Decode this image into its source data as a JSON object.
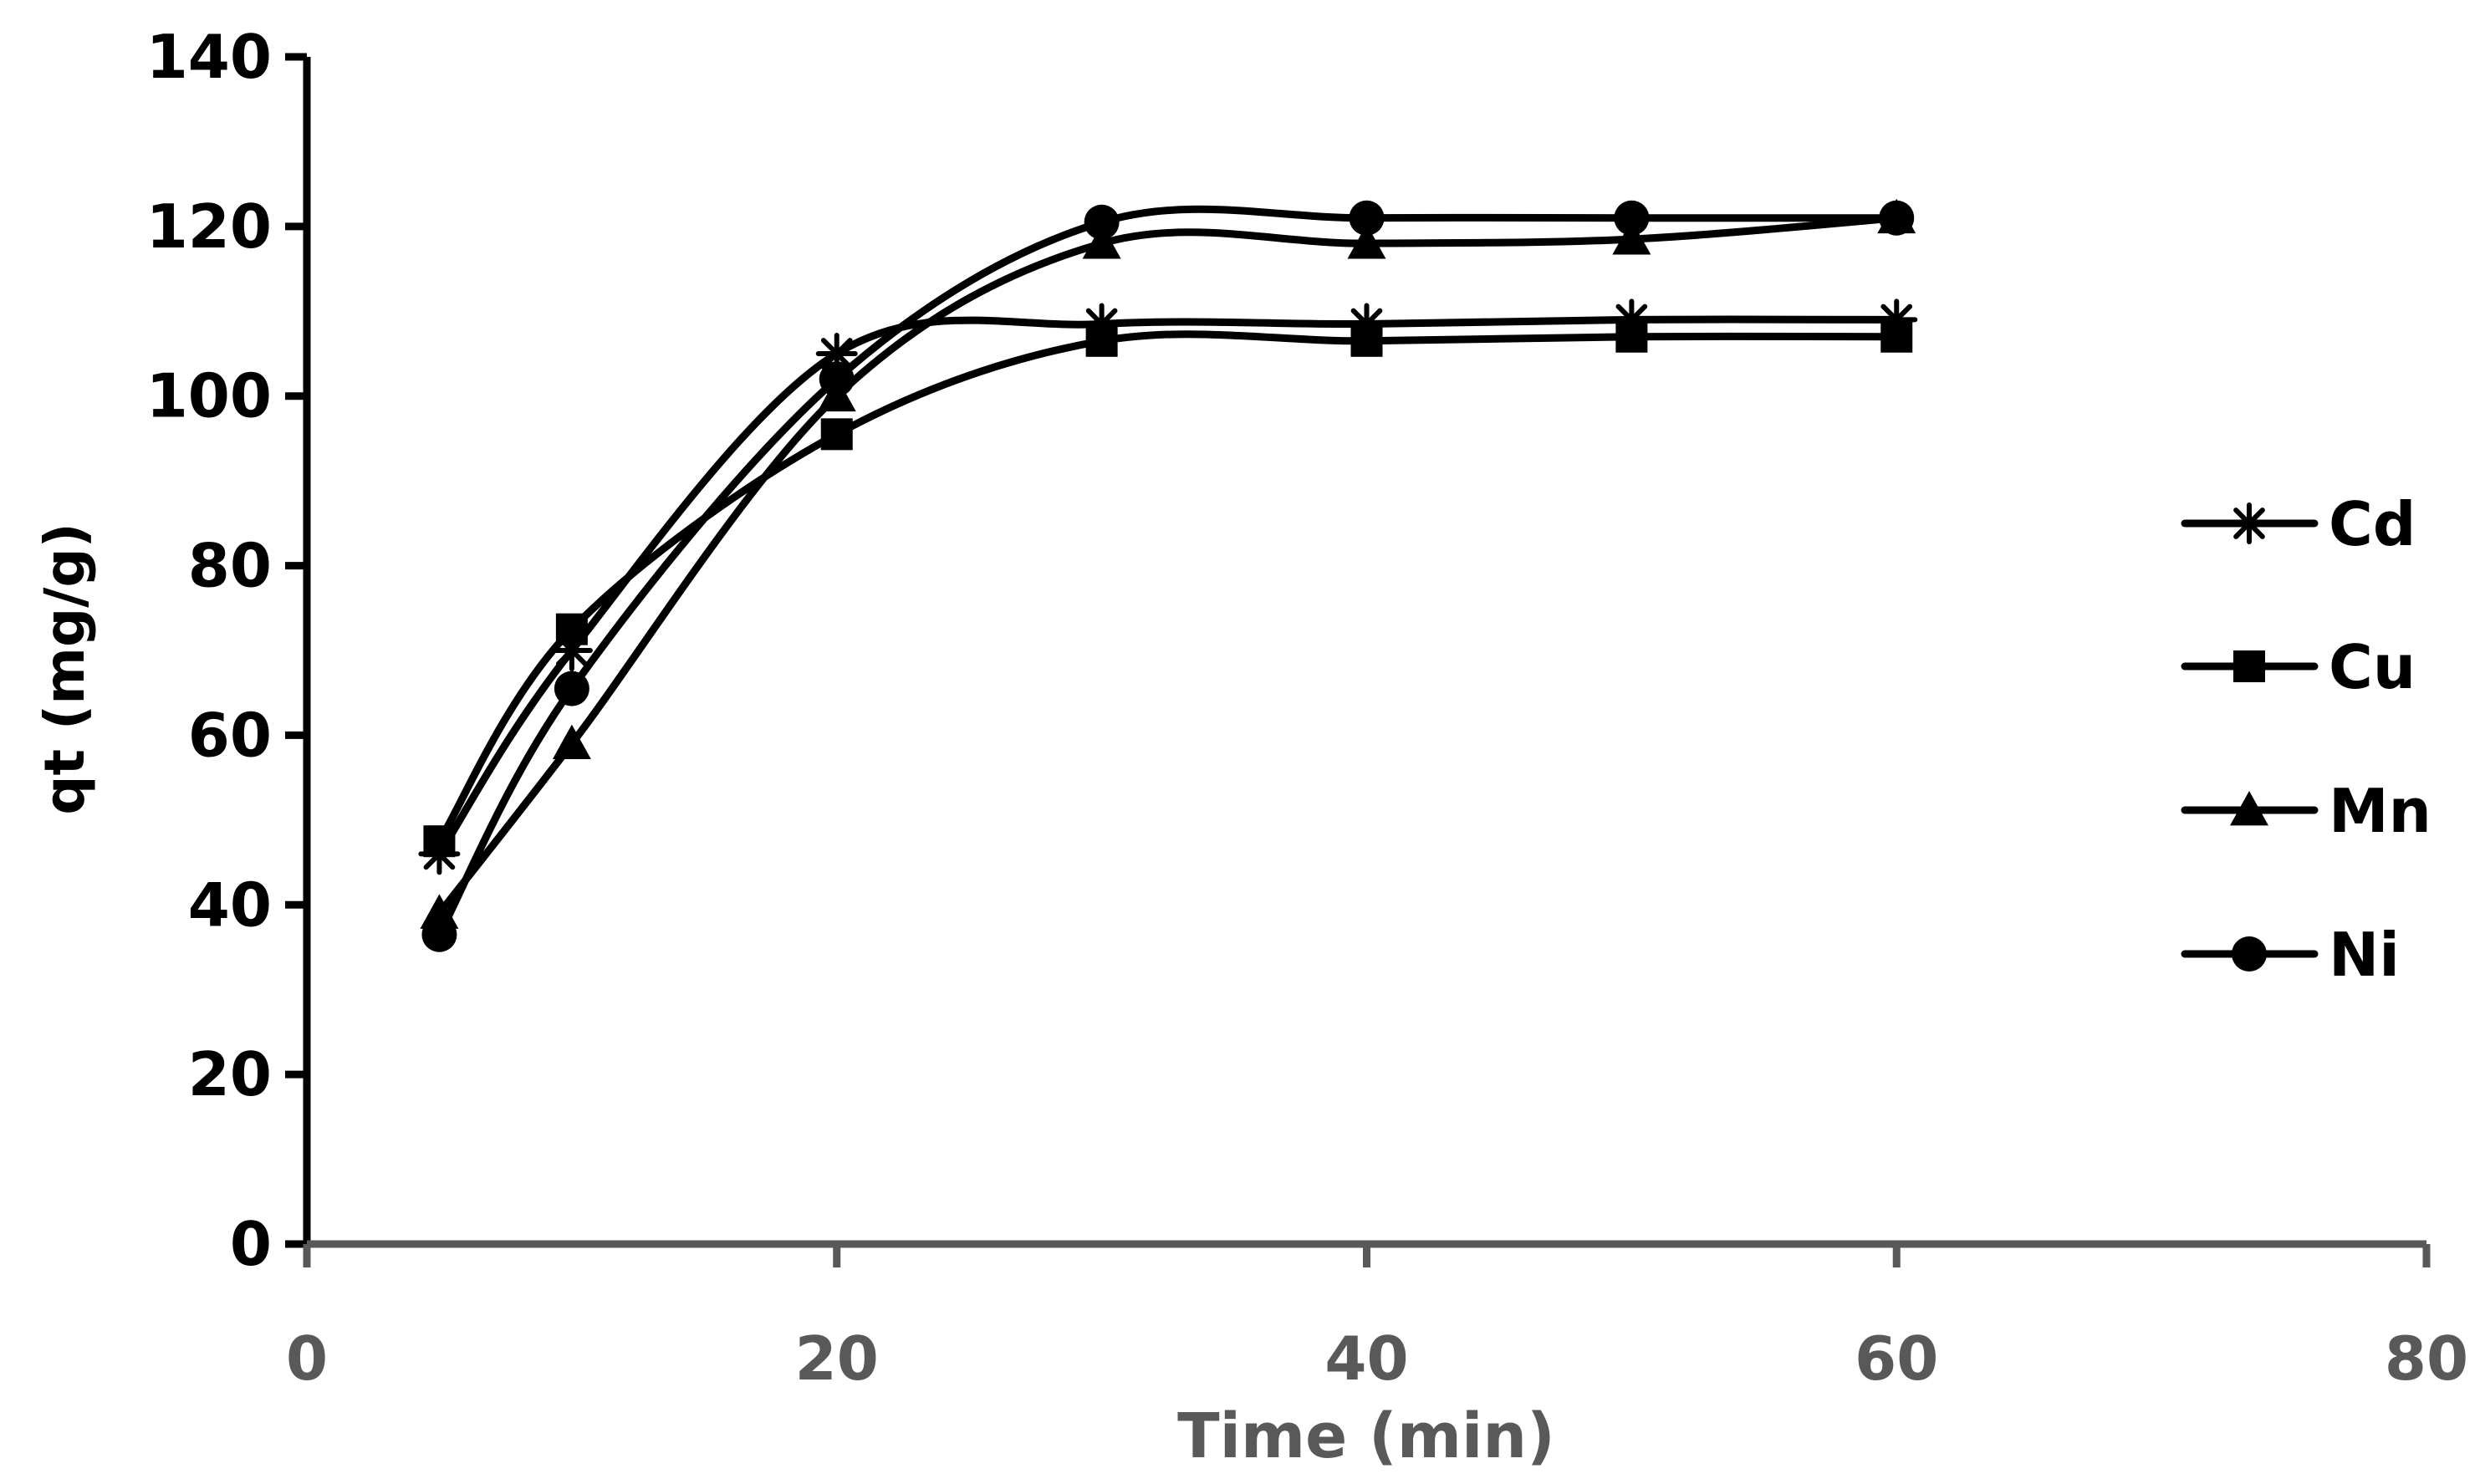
{
  "chart_data": {
    "type": "line",
    "title": "",
    "xlabel": "Time (min)",
    "ylabel": "qt (mg/g)",
    "xlim": [
      0,
      80
    ],
    "ylim": [
      0,
      140
    ],
    "x_ticks": [
      0,
      20,
      40,
      60,
      80
    ],
    "y_ticks": [
      0,
      20,
      40,
      60,
      80,
      100,
      120,
      140
    ],
    "grid": false,
    "smooth": true,
    "legend_position": "right",
    "x": [
      5,
      10,
      20,
      30,
      40,
      50,
      60
    ],
    "series": [
      {
        "name": "Cd",
        "marker": "asterisk",
        "values": [
          46,
          70,
          105,
          108.5,
          108.5,
          109,
          109
        ]
      },
      {
        "name": "Cu",
        "marker": "square",
        "values": [
          47.5,
          72.5,
          95.5,
          106.5,
          106.5,
          107,
          107
        ]
      },
      {
        "name": "Mn",
        "marker": "triangle",
        "values": [
          39,
          59,
          100,
          118,
          118,
          118.5,
          121
        ]
      },
      {
        "name": "Ni",
        "marker": "circle",
        "values": [
          36.5,
          65.5,
          102,
          120.5,
          121,
          121,
          121
        ]
      }
    ],
    "colors": {
      "line": "#000000",
      "x_text": "#595959",
      "y_text": "#000000"
    }
  }
}
